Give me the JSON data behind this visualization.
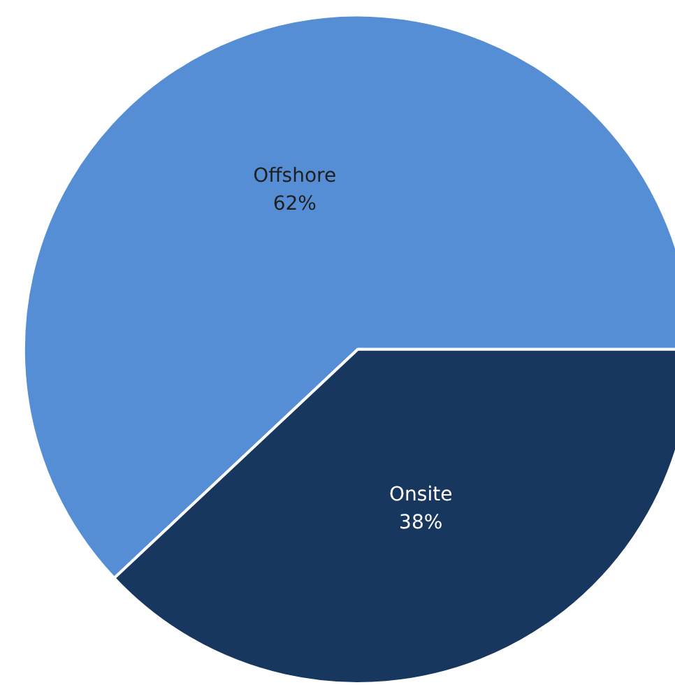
{
  "chart_data": {
    "type": "pie",
    "categories": [
      "Offshore",
      "Onsite"
    ],
    "values": [
      62,
      38
    ],
    "value_labels": [
      "62%",
      "38%"
    ],
    "colors": [
      "#558ed5",
      "#17375e"
    ],
    "legend": false
  }
}
